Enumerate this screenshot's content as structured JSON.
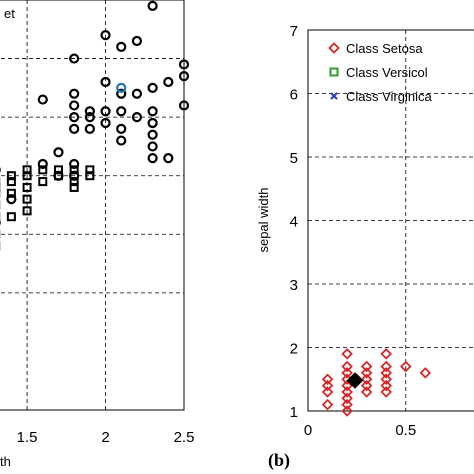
{
  "chart_data": [
    {
      "type": "scatter",
      "title": "",
      "xlabel": "th",
      "ylabel": "",
      "legend_fragment": "et",
      "xlim": [
        1.2,
        2.5
      ],
      "ylim": [
        0,
        7
      ],
      "xticks": [
        "1.5",
        "2",
        "2.5"
      ],
      "grid": true,
      "series": [
        {
          "marker": "circle",
          "color": "#000000",
          "points": [
            [
              2.3,
              6.9
            ],
            [
              2.0,
              6.4
            ],
            [
              2.1,
              6.2
            ],
            [
              2.2,
              6.3
            ],
            [
              1.8,
              6.0
            ],
            [
              2.0,
              5.6
            ],
            [
              1.8,
              5.4
            ],
            [
              1.8,
              5.2
            ],
            [
              1.8,
              5.0
            ],
            [
              1.8,
              4.8
            ],
            [
              1.9,
              5.0
            ],
            [
              1.9,
              4.8
            ],
            [
              1.9,
              5.1
            ],
            [
              2.5,
              5.9
            ],
            [
              2.5,
              5.7
            ],
            [
              2.5,
              5.2
            ],
            [
              2.4,
              5.6
            ],
            [
              2.3,
              5.5
            ],
            [
              2.3,
              5.1
            ],
            [
              2.3,
              4.9
            ],
            [
              2.3,
              4.7
            ],
            [
              2.3,
              4.5
            ],
            [
              2.3,
              4.3
            ],
            [
              2.2,
              5.4
            ],
            [
              2.2,
              5.0
            ],
            [
              2.1,
              5.4
            ],
            [
              2.1,
              5.1
            ],
            [
              2.1,
              4.8
            ],
            [
              2.1,
              4.6
            ],
            [
              2.0,
              5.1
            ],
            [
              2.0,
              4.9
            ],
            [
              2.4,
              4.3
            ],
            [
              1.6,
              5.3
            ],
            [
              1.7,
              4.4
            ],
            [
              1.6,
              4.2
            ],
            [
              1.8,
              4.2
            ],
            [
              1.8,
              4.0
            ],
            [
              1.7,
              4.0
            ],
            [
              1.3,
              4.1
            ],
            [
              1.4,
              3.6
            ],
            [
              1.3,
              3.2
            ]
          ]
        },
        {
          "marker": "square",
          "color": "#000000",
          "points": [
            [
              1.5,
              4.1
            ],
            [
              1.5,
              4.0
            ],
            [
              1.4,
              3.9
            ],
            [
              1.5,
              3.8
            ],
            [
              1.5,
              3.6
            ],
            [
              1.3,
              3.9
            ],
            [
              1.3,
              3.8
            ],
            [
              1.3,
              3.7
            ],
            [
              1.3,
              3.5
            ],
            [
              1.3,
              3.3
            ],
            [
              1.4,
              4.0
            ],
            [
              1.4,
              3.7
            ],
            [
              1.6,
              4.1
            ],
            [
              1.6,
              3.9
            ],
            [
              1.7,
              4.1
            ],
            [
              1.7,
              4.0
            ],
            [
              1.8,
              4.1
            ],
            [
              1.8,
              3.9
            ],
            [
              1.8,
              3.8
            ],
            [
              1.9,
              4.1
            ],
            [
              1.9,
              4.0
            ],
            [
              1.3,
              3.0
            ],
            [
              1.3,
              2.8
            ],
            [
              1.4,
              3.3
            ],
            [
              1.5,
              3.4
            ]
          ]
        },
        {
          "marker": "circle",
          "color": "#1f77b4",
          "points": [
            [
              2.1,
              5.5
            ]
          ]
        }
      ]
    },
    {
      "type": "scatter",
      "title": "",
      "panel_label": "(b)",
      "xlabel": "",
      "ylabel": "sepal width",
      "xlim": [
        0,
        0.9
      ],
      "ylim": [
        1,
        7
      ],
      "xticks": [
        "0",
        "0.5"
      ],
      "yticks": [
        "1",
        "2",
        "3",
        "4",
        "5",
        "6",
        "7"
      ],
      "grid": true,
      "legend_position": "top",
      "series": [
        {
          "name": "Class Setosa",
          "marker": "diamond",
          "color": "#d62728",
          "points": [
            [
              0.2,
              1.9
            ],
            [
              0.2,
              1.7
            ],
            [
              0.2,
              1.6
            ],
            [
              0.2,
              1.5
            ],
            [
              0.2,
              1.4
            ],
            [
              0.2,
              1.3
            ],
            [
              0.2,
              1.2
            ],
            [
              0.2,
              1.1
            ],
            [
              0.2,
              1.0
            ],
            [
              0.1,
              1.5
            ],
            [
              0.1,
              1.4
            ],
            [
              0.1,
              1.3
            ],
            [
              0.1,
              1.1
            ],
            [
              0.3,
              1.7
            ],
            [
              0.3,
              1.6
            ],
            [
              0.3,
              1.5
            ],
            [
              0.3,
              1.4
            ],
            [
              0.3,
              1.3
            ],
            [
              0.4,
              1.9
            ],
            [
              0.4,
              1.7
            ],
            [
              0.4,
              1.6
            ],
            [
              0.4,
              1.5
            ],
            [
              0.4,
              1.4
            ],
            [
              0.4,
              1.3
            ],
            [
              0.5,
              1.7
            ],
            [
              0.6,
              1.6
            ],
            [
              0.25,
              1.5
            ]
          ]
        },
        {
          "name": "Class Versicol",
          "marker": "square",
          "color": "#2ca02c",
          "points": []
        },
        {
          "name": "Class Virginica",
          "marker": "x",
          "color": "#1f3fbf",
          "points": []
        },
        {
          "marker": "diamond",
          "color": "#000000",
          "points": [
            [
              0.24,
              1.48
            ]
          ]
        }
      ]
    }
  ]
}
